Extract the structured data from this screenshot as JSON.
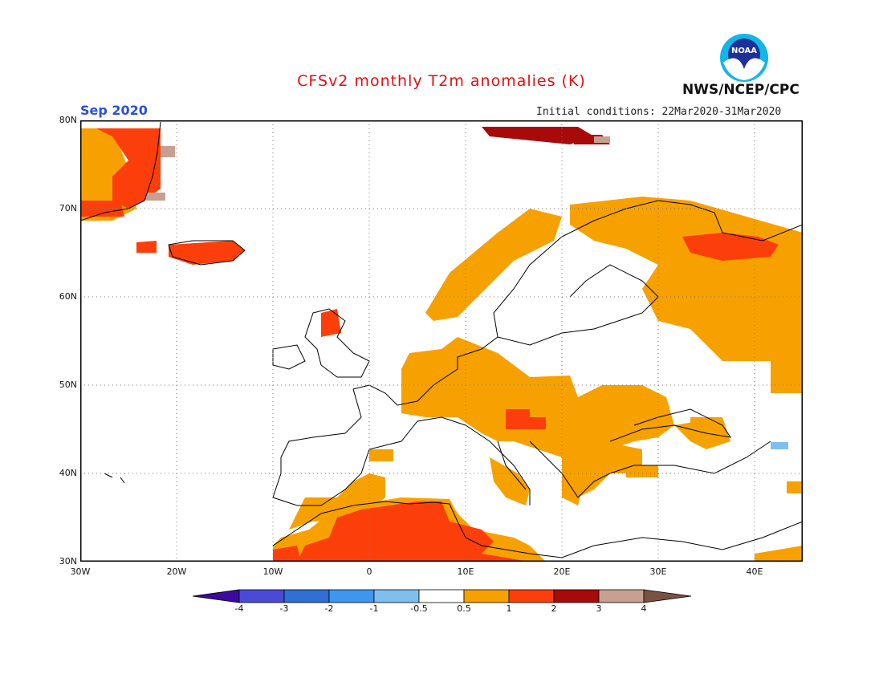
{
  "header": {
    "title": "CFSv2 monthly T2m anomalies (K)",
    "month": "Sep 2020",
    "initial_conditions": "Initial conditions: 22Mar2020-31Mar2020",
    "org": "NWS/NCEP/CPC",
    "logo_text": "NOAA"
  },
  "map": {
    "lat_labels": [
      "80N",
      "70N",
      "60N",
      "50N",
      "40N",
      "30N"
    ],
    "lon_labels": [
      "30W",
      "20W",
      "10W",
      "0",
      "10E",
      "20E",
      "30E",
      "40E"
    ],
    "lat_range": [
      30,
      80
    ],
    "lon_range": [
      -30,
      45
    ],
    "grid": true,
    "anomaly_regions": [
      {
        "name": "Greenland east coast",
        "level": 2
      },
      {
        "name": "Iceland",
        "level": 2
      },
      {
        "name": "Svalbard",
        "level": 3
      },
      {
        "name": "Scandinavia west coast",
        "level": 1
      },
      {
        "name": "NW Russia",
        "level": 1
      },
      {
        "name": "Kola Peninsula",
        "level": 2
      },
      {
        "name": "Central Europe",
        "level": 1
      },
      {
        "name": "Balkans",
        "level": 1
      },
      {
        "name": "Iberia south",
        "level": 1
      },
      {
        "name": "North Africa",
        "level": 2
      },
      {
        "name": "Caspian region",
        "level": -1
      }
    ]
  },
  "colorbar": {
    "tick_labels": [
      "-4",
      "-3",
      "-2",
      "-1",
      "-0.5",
      "0.5",
      "1",
      "2",
      "3",
      "4"
    ],
    "colors": [
      "#3c0a9e",
      "#4a4ad8",
      "#2f6fd6",
      "#3f96ee",
      "#7fbff0",
      "#ffffff",
      "#f7a100",
      "#fc3f0a",
      "#a80a0a",
      "#c8a092",
      "#7a5244"
    ]
  },
  "palette": {
    "title": "#e01010",
    "month": "#2a4fd6",
    "pos1": "#f7a100",
    "pos2": "#fc3f0a",
    "pos3": "#a80a0a",
    "pos4": "#c8a092",
    "neg1": "#7fbff0"
  }
}
